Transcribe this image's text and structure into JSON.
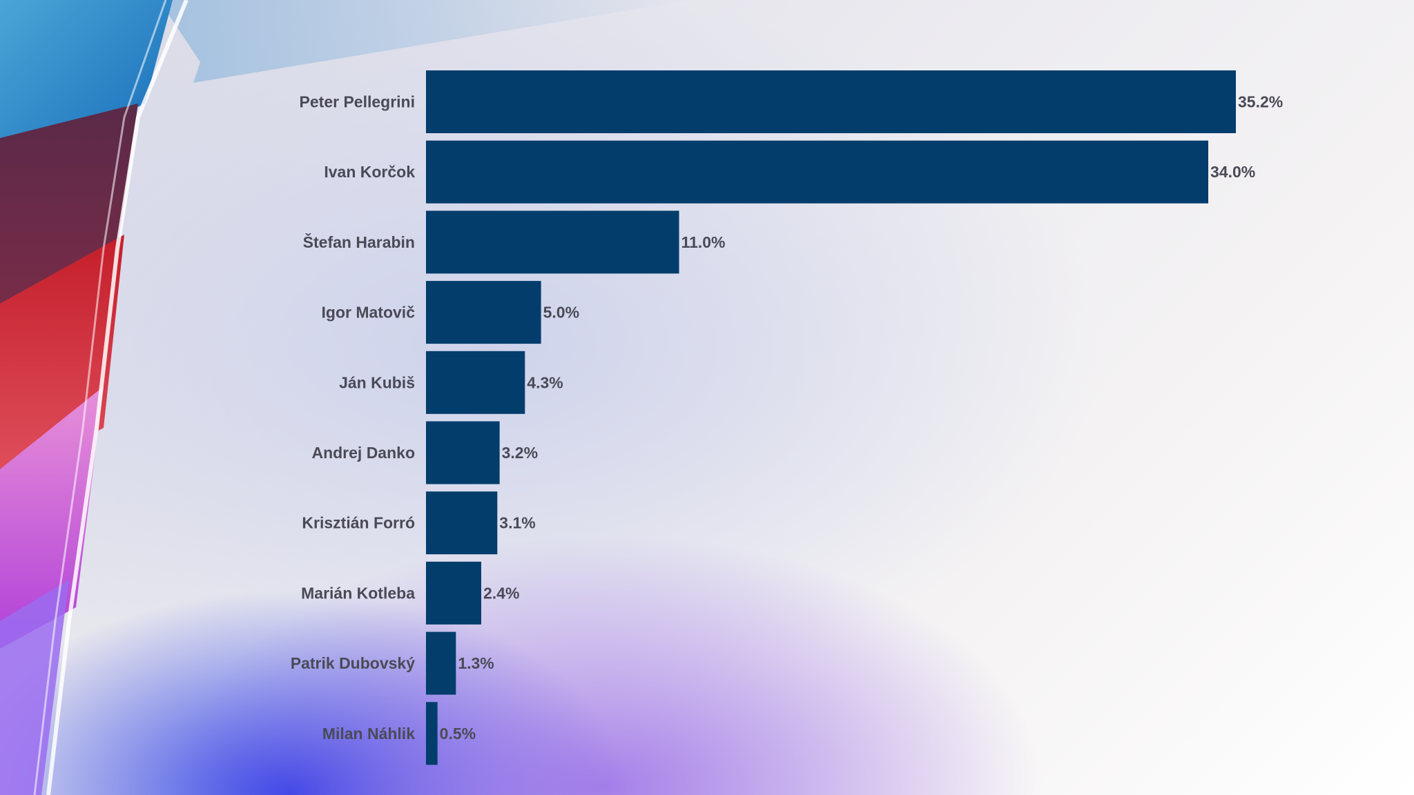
{
  "colors": {
    "bar": "#023d6c",
    "label": "#4a4a57"
  },
  "chart_data": {
    "type": "bar",
    "orientation": "horizontal",
    "categories": [
      "Peter Pellegrini",
      "Ivan Korčok",
      "Štefan Harabin",
      "Igor Matovič",
      "Ján Kubiš",
      "Andrej Danko",
      "Krisztián Forró",
      "Marián Kotleba",
      "Patrik Dubovský",
      "Milan Náhlik"
    ],
    "values": [
      35.2,
      34.0,
      11.0,
      5.0,
      4.3,
      3.2,
      3.1,
      2.4,
      1.3,
      0.5
    ],
    "value_labels": [
      "35.2%",
      "34.0%",
      "11.0%",
      "5.0%",
      "4.3%",
      "3.2%",
      "3.1%",
      "2.4%",
      "1.3%",
      "0.5%"
    ],
    "xlim": [
      0,
      35.2
    ],
    "grid": false,
    "legend": "none"
  }
}
